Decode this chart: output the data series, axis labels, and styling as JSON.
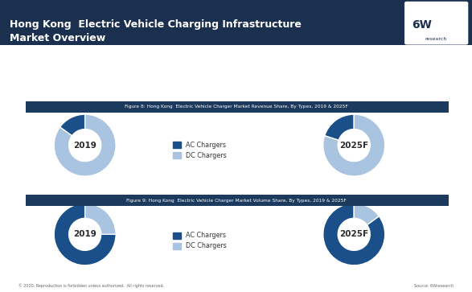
{
  "title_line1": "Hong Kong  Electric Vehicle Charging Infrastructure",
  "title_line2": "Market Overview",
  "title_bg": "#1b2f4e",
  "title_color": "#ffffff",
  "logo_text": "6W",
  "logo_sub": "research",
  "fig1_title": "Figure 8: Hong Kong  Electric Vehicle Charger Market Revenue Share, By Types, 2019 & 2025F",
  "fig2_title": "Figure 9: Hong Kong  Electric Vehicle Charger Market Volume Share, By Types, 2019 & 2025F",
  "fig_title_bg": "#1b3a5e",
  "fig_title_color": "#ffffff",
  "ac_color": "#1a4f8a",
  "dc_color": "#a8c4e0",
  "rev_2019_ac": 15,
  "rev_2019_dc": 85,
  "rev_2025_ac": 20,
  "rev_2025_dc": 80,
  "vol_2019_ac": 75,
  "vol_2019_dc": 25,
  "vol_2025_ac": 85,
  "vol_2025_dc": 15,
  "legend_labels": [
    "AC Chargers",
    "DC Chargers"
  ],
  "center_label_2019": "2019",
  "center_label_2025": "2025F",
  "footer_left": "© 2020. Reproduction is forbidden unless authorized.  All rights reserved.",
  "footer_right": "Source: 6Wresearch",
  "footer_color": "#666666",
  "bg_color": "#ffffff"
}
